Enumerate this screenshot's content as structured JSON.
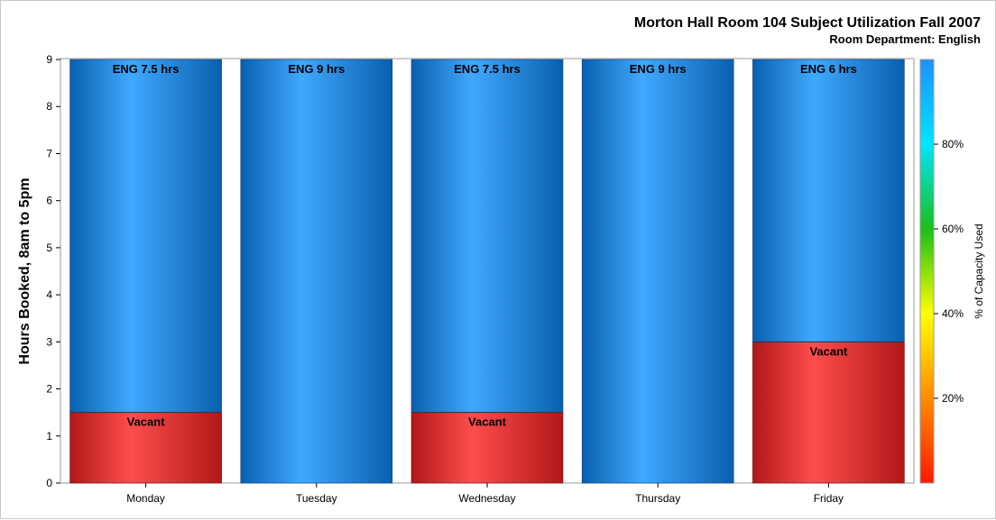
{
  "chart_data": {
    "type": "bar",
    "stacked": true,
    "title": "Morton Hall Room 104 Subject Utilization Fall 2007",
    "subtitle": "Room Department:  English",
    "ylabel": "Hours Booked, 8am to 5pm",
    "xlabel": "",
    "ylim": [
      0,
      9
    ],
    "yticks": [
      0,
      1,
      2,
      3,
      4,
      5,
      6,
      7,
      8,
      9
    ],
    "categories": [
      "Monday",
      "Tuesday",
      "Wednesday",
      "Thursday",
      "Friday"
    ],
    "series": [
      {
        "name": "Vacant",
        "values": [
          1.5,
          0,
          1.5,
          0,
          3
        ],
        "color": "#ff4d4d",
        "shade": "#b01818"
      },
      {
        "name": "ENG",
        "values": [
          7.5,
          9,
          7.5,
          9,
          6
        ],
        "color": "#3fa9ff",
        "shade": "#0a5fae"
      }
    ],
    "segment_labels": {
      "top": [
        "ENG 7.5 hrs",
        "ENG 9 hrs",
        "ENG 7.5 hrs",
        "ENG 9 hrs",
        "ENG 6 hrs"
      ],
      "vacant": [
        "Vacant",
        "",
        "Vacant",
        "",
        "Vacant"
      ]
    },
    "colorbar": {
      "title": "% of Capacity Used",
      "ticks": [
        "20%",
        "40%",
        "60%",
        "80%"
      ],
      "tick_values": [
        20,
        40,
        60,
        80
      ],
      "range": [
        0,
        100
      ],
      "colors": [
        "#ff1a00",
        "#ff8c00",
        "#ffff00",
        "#1abf1a",
        "#00e5ff",
        "#1e90ff"
      ]
    },
    "grid": false
  }
}
